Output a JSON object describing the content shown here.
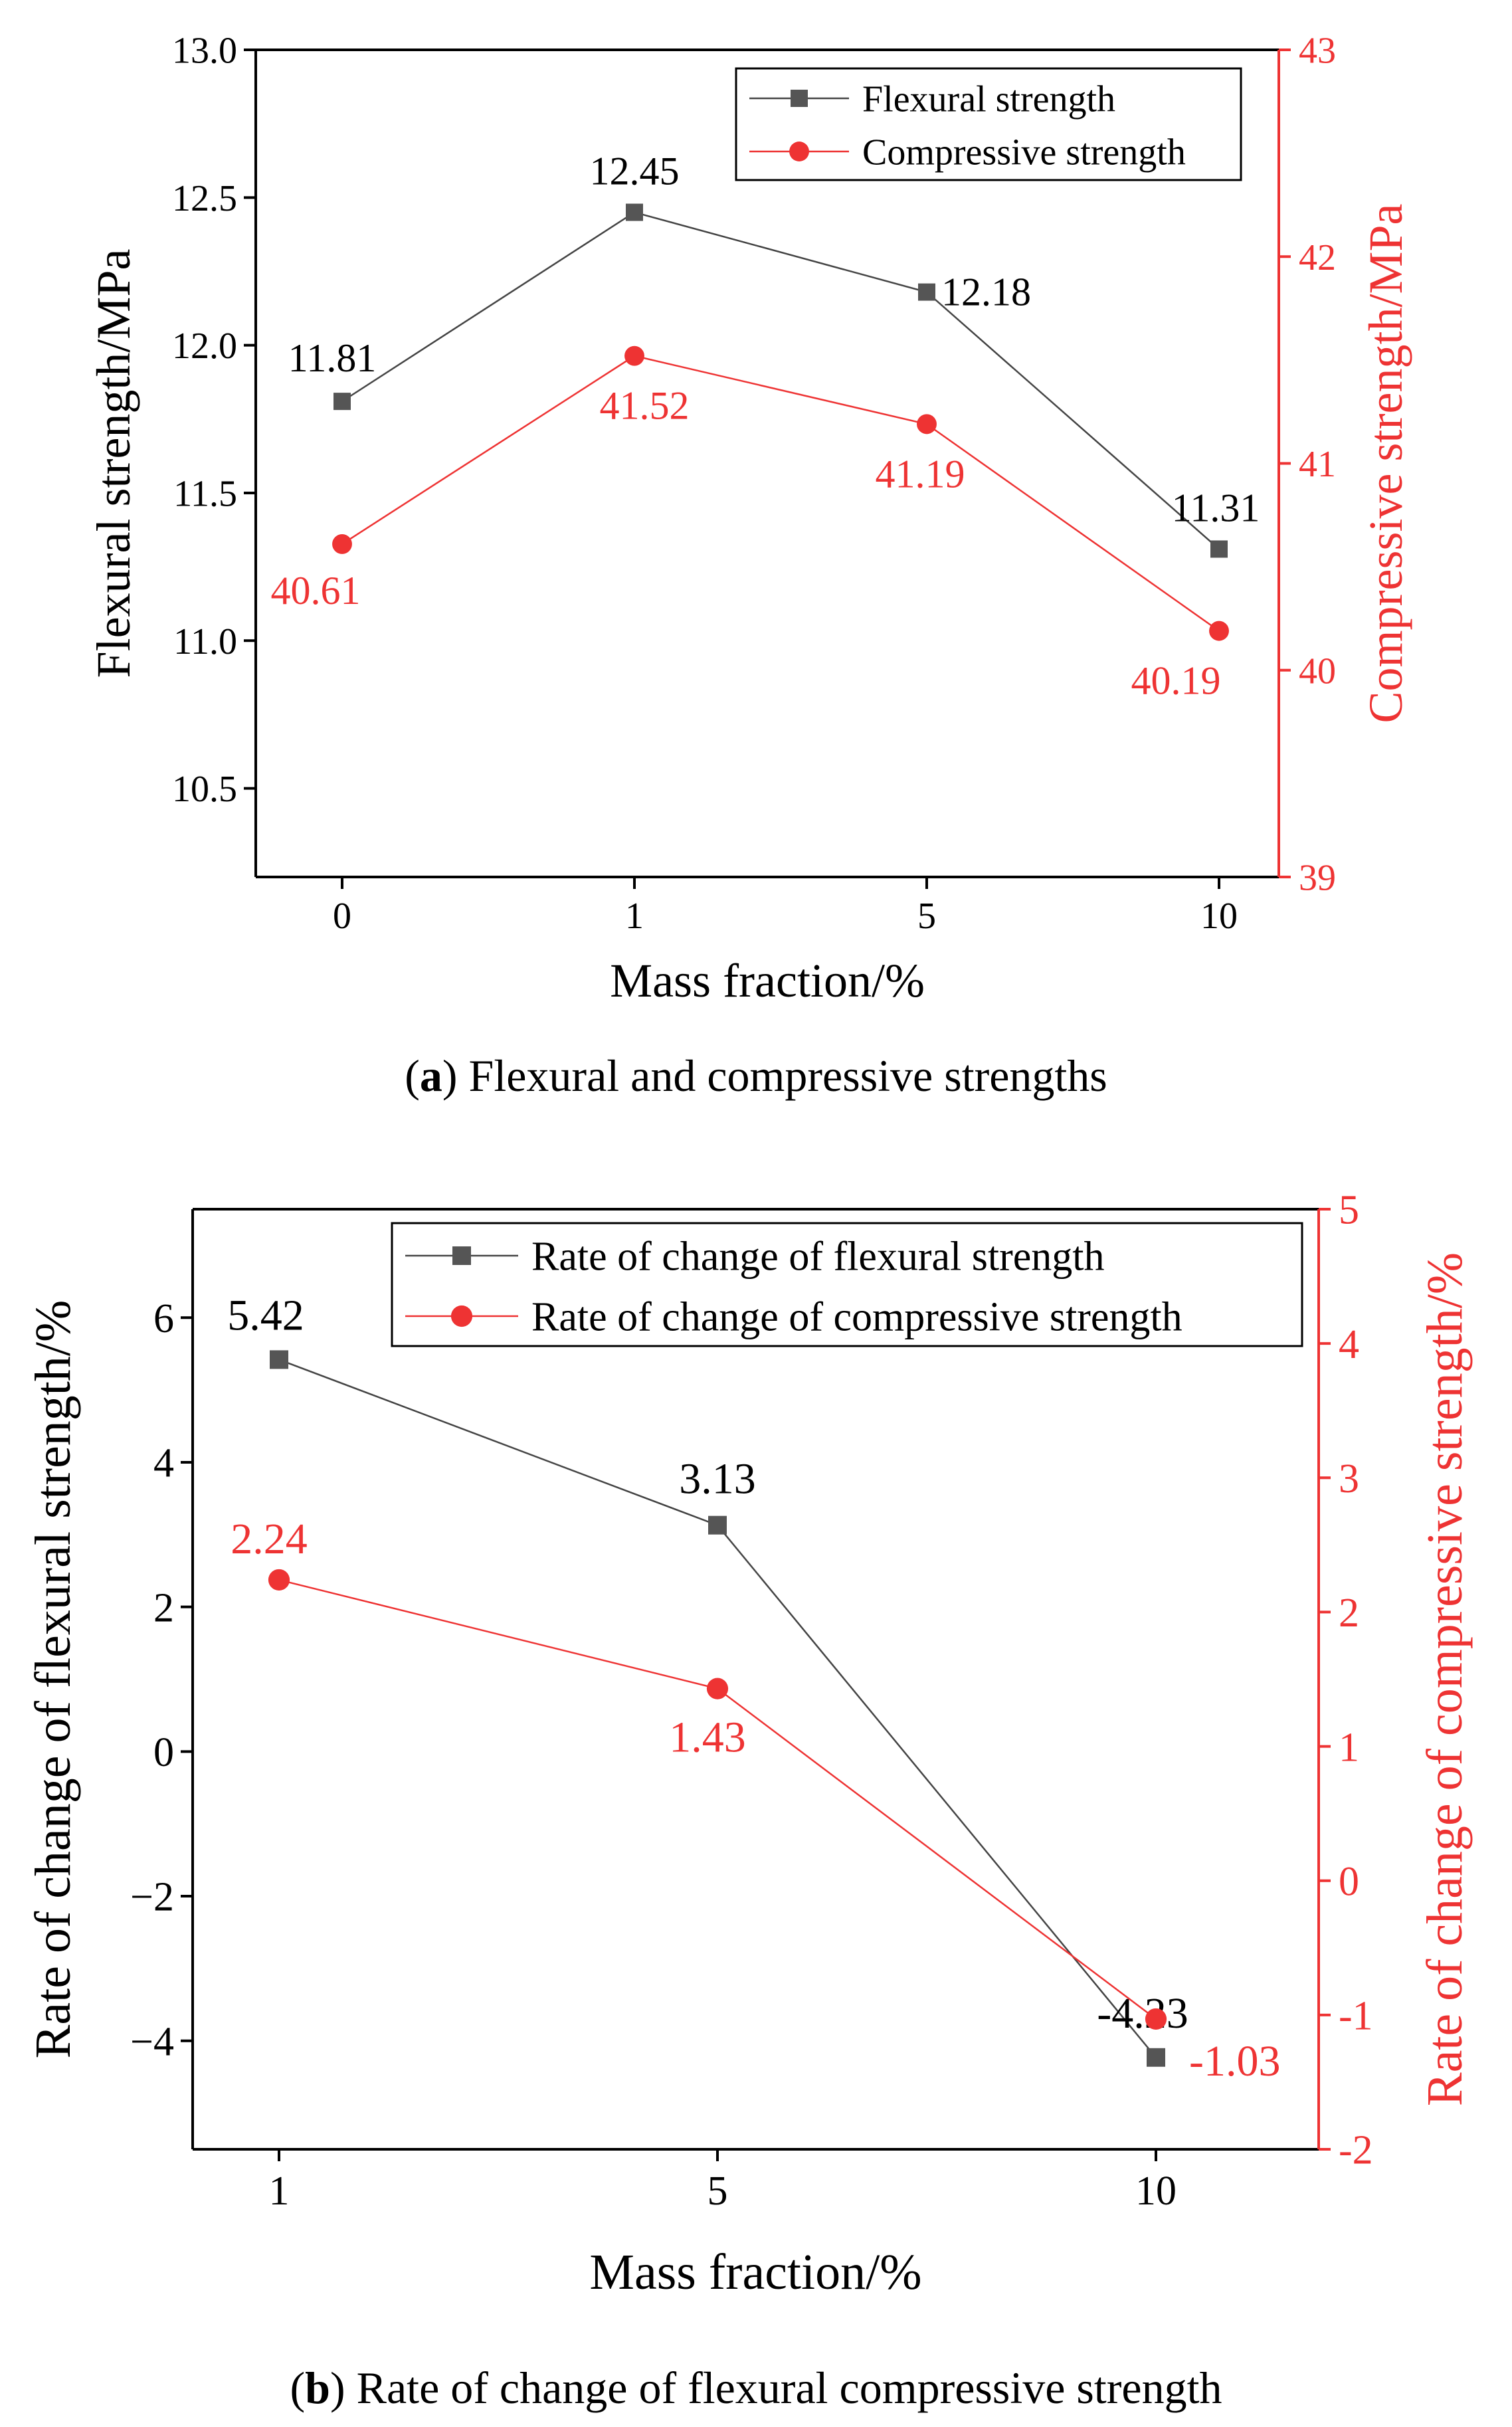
{
  "chart_data": [
    {
      "id": "a",
      "type": "line",
      "categories": [
        "0",
        "1",
        "5",
        "10"
      ],
      "xlabel": "Mass fraction/%",
      "ylabel": "Flexural strength/MPa",
      "y2label": "Compressive strength/MPa",
      "ylim": [
        10.2,
        13.0
      ],
      "y2lim": [
        39,
        43
      ],
      "yticks": [
        "10.5",
        "11.0",
        "11.5",
        "12.0",
        "12.5",
        "13.0"
      ],
      "y2ticks": [
        "39",
        "40",
        "41",
        "42",
        "43"
      ],
      "legend_position": "top-right",
      "series": [
        {
          "name": "Flexural strength",
          "axis": "left",
          "marker": "square",
          "color": "#444444",
          "values": [
            11.81,
            12.45,
            12.18,
            11.31
          ],
          "labels": [
            "11.81",
            "12.45",
            "12.18",
            "11.31"
          ]
        },
        {
          "name": "Compressive strength",
          "axis": "right",
          "marker": "circle",
          "color": "#ee3333",
          "values": [
            40.61,
            41.52,
            41.19,
            40.19
          ],
          "labels": [
            "40.61",
            "41.52",
            "41.19",
            "40.19"
          ]
        }
      ],
      "caption_letter": "a",
      "caption_text": " Flexural and compressive strengths"
    },
    {
      "id": "b",
      "type": "line",
      "categories": [
        "1",
        "5",
        "10"
      ],
      "xlabel": "Mass fraction/%",
      "ylabel": "Rate of change of flexural strength/%",
      "y2label": "Rate of change of compressive strength/%",
      "ylim": [
        -5.5,
        7.5
      ],
      "y2lim": [
        -2,
        5
      ],
      "yticks": [
        "−4",
        "−2",
        "0",
        "2",
        "4",
        "6"
      ],
      "yticks_values": [
        -4,
        -2,
        0,
        2,
        4,
        6
      ],
      "y2ticks": [
        "-2",
        "-1",
        "0",
        "1",
        "2",
        "3",
        "4",
        "5"
      ],
      "legend_position": "top-right",
      "series": [
        {
          "name": "Rate of change of flexural strength",
          "axis": "left",
          "marker": "square",
          "color": "#444444",
          "values": [
            5.42,
            3.13,
            -4.23
          ],
          "labels": [
            "5.42",
            "3.13",
            "-4.23"
          ]
        },
        {
          "name": "Rate of change of compressive strength",
          "axis": "right",
          "marker": "circle",
          "color": "#ee3333",
          "values": [
            2.24,
            1.43,
            -1.03
          ],
          "labels": [
            "2.24",
            "1.43",
            "-1.03"
          ]
        }
      ],
      "caption_letter": "b",
      "caption_text": " Rate of change of flexural compressive strength"
    }
  ]
}
